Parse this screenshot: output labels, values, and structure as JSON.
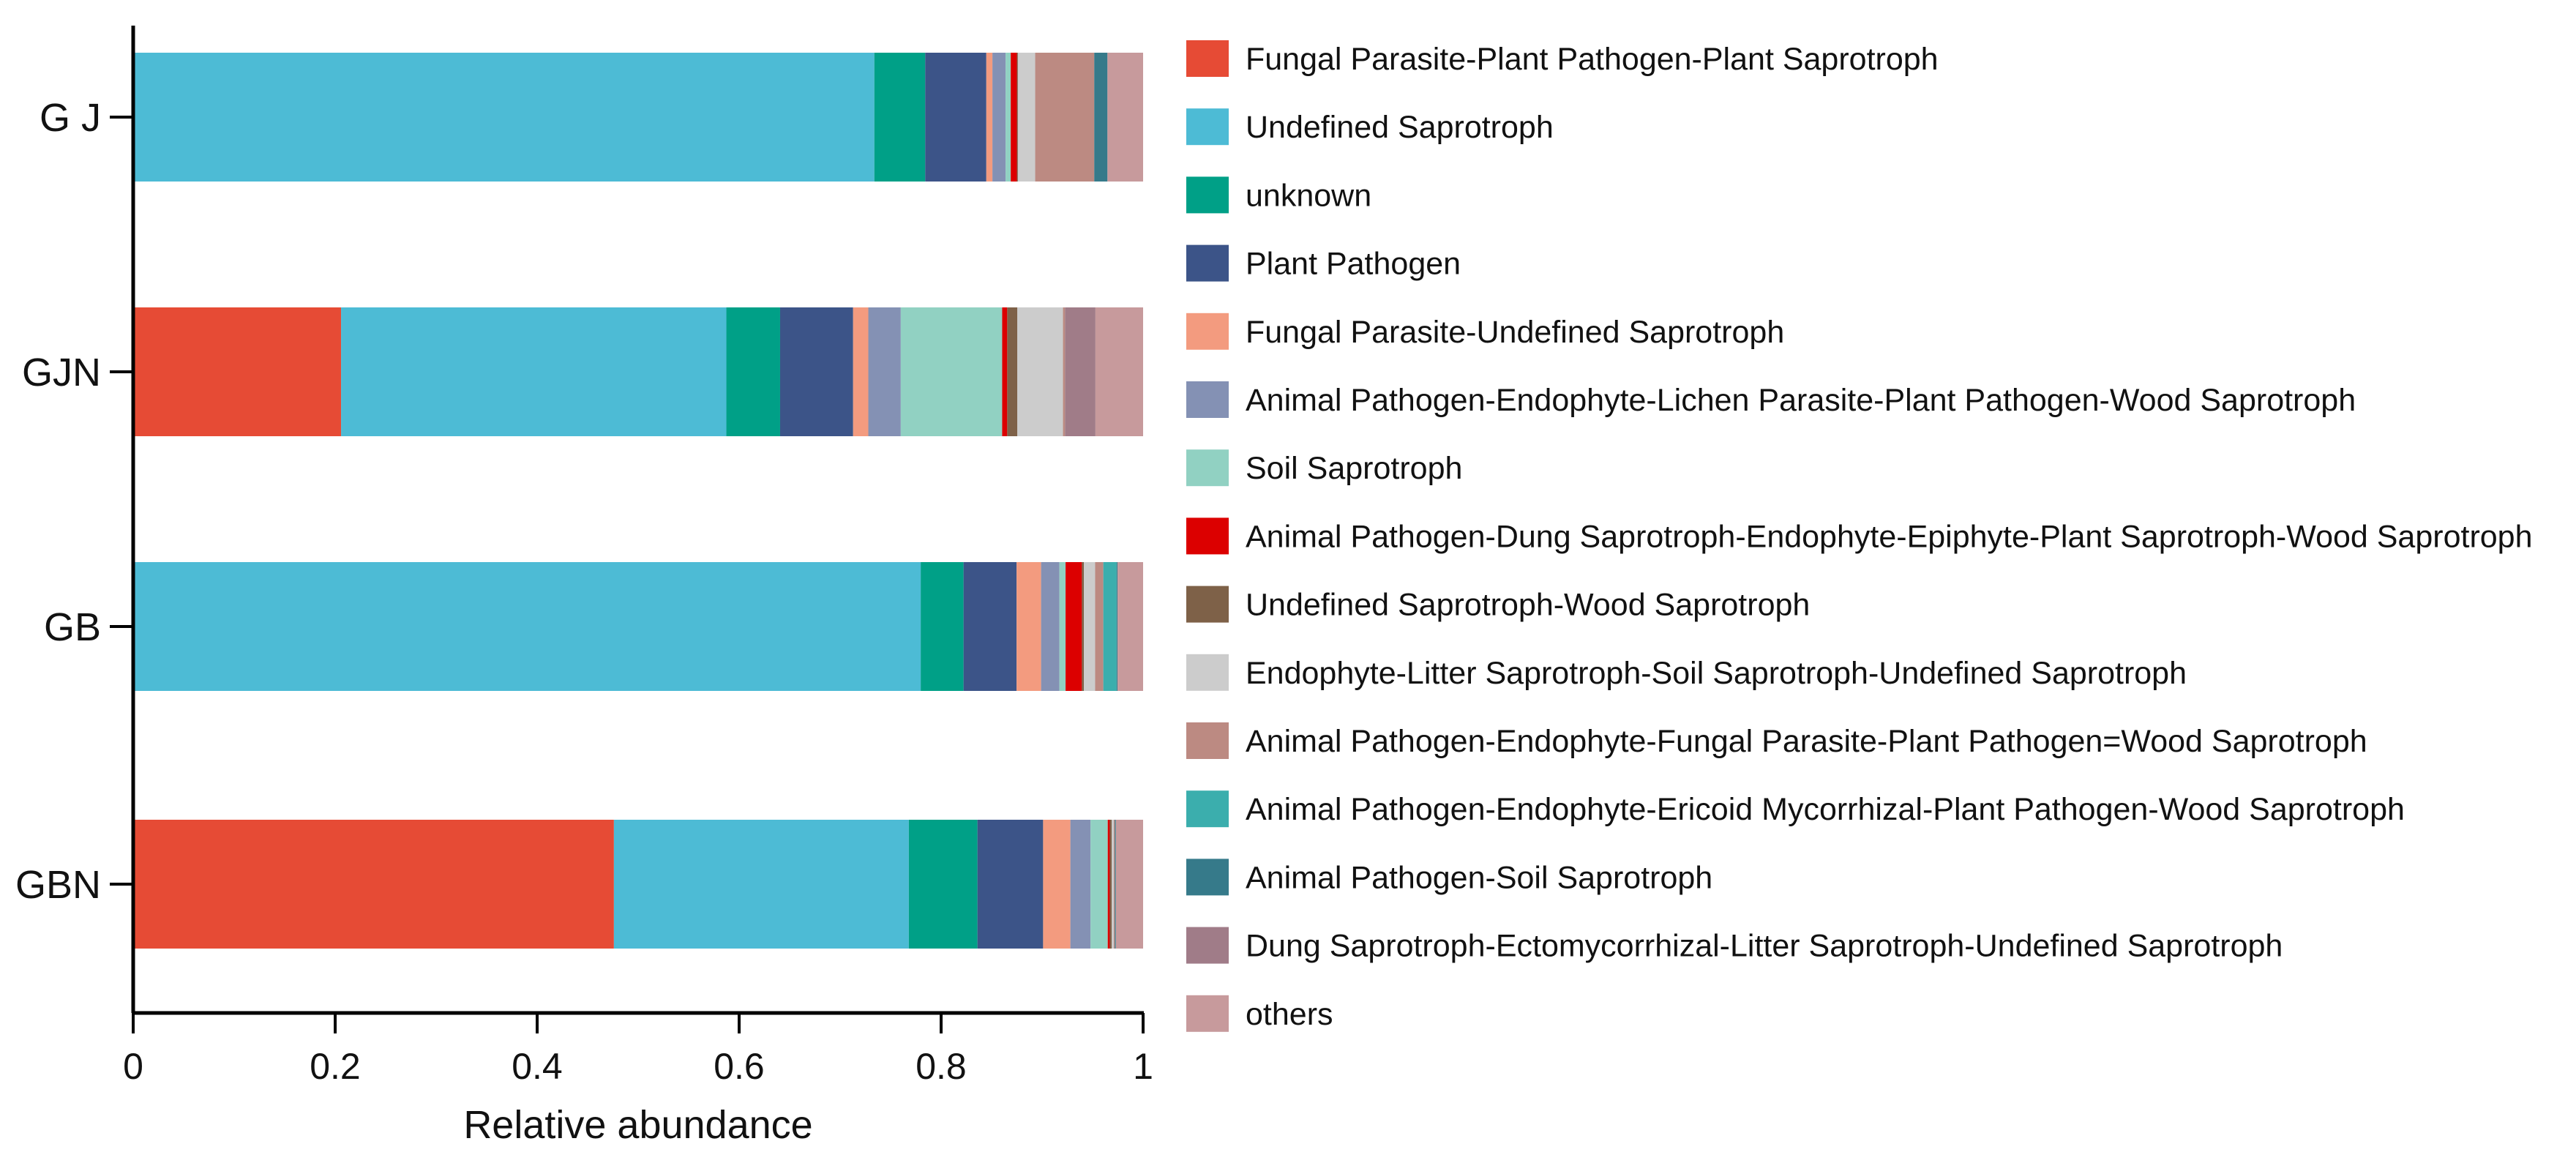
{
  "chart_data": {
    "type": "bar",
    "orientation": "horizontal",
    "stacked": true,
    "title": "",
    "xlabel": "Relative abundance",
    "ylabel": "",
    "xlim": [
      0,
      1
    ],
    "x_ticks": [
      "0",
      "0.2",
      "0.4",
      "0.6",
      "0.8",
      "1"
    ],
    "categories": [
      "G J",
      "GJN",
      "GB",
      "GBN"
    ],
    "legend_position": "right",
    "series": [
      {
        "name": "Fungal Parasite-Plant Pathogen-Plant Saprotroph",
        "color": "#E64B35",
        "values": [
          0.0,
          0.205,
          0.0,
          0.476
        ]
      },
      {
        "name": "Undefined Saprotroph",
        "color": "#4DBBD5",
        "values": [
          0.728,
          0.38,
          0.772,
          0.292
        ]
      },
      {
        "name": "unknown",
        "color": "#00A087",
        "values": [
          0.05,
          0.053,
          0.042,
          0.068
        ]
      },
      {
        "name": "Plant Pathogen",
        "color": "#3C5488",
        "values": [
          0.06,
          0.072,
          0.052,
          0.065
        ]
      },
      {
        "name": "Fungal Parasite-Undefined Saprotroph",
        "color": "#F39B7F",
        "values": [
          0.006,
          0.015,
          0.024,
          0.027
        ]
      },
      {
        "name": "Animal Pathogen-Endophyte-Lichen Parasite-Plant Pathogen-Wood Saprotroph",
        "color": "#8491B4",
        "values": [
          0.013,
          0.032,
          0.018,
          0.02
        ]
      },
      {
        "name": "Soil Saprotroph",
        "color": "#91D1C2",
        "values": [
          0.005,
          0.1,
          0.006,
          0.017
        ]
      },
      {
        "name": "Animal Pathogen-Dung Saprotroph-Endophyte-Epiphyte-Plant Saprotroph-Wood Saprotroph",
        "color": "#DC0000",
        "values": [
          0.006,
          0.005,
          0.016,
          0.002
        ]
      },
      {
        "name": "Undefined Saprotroph-Wood Saprotroph",
        "color": "#7E6148",
        "values": [
          0.001,
          0.01,
          0.002,
          0.002
        ]
      },
      {
        "name": "Endophyte-Litter Saprotroph-Soil Saprotroph-Undefined Saprotroph",
        "color": "#CCCCCC",
        "values": [
          0.017,
          0.045,
          0.011,
          0.002
        ]
      },
      {
        "name": "Animal Pathogen-Endophyte-Fungal Parasite-Plant Pathogen=Wood Saprotroph",
        "color": "#BC8A82",
        "values": [
          0.058,
          0.002,
          0.008,
          0.001
        ]
      },
      {
        "name": "Animal Pathogen-Endophyte-Ericoid Mycorrhizal-Plant Pathogen-Wood Saprotroph",
        "color": "#3BAEAD",
        "values": [
          0.0,
          0.0,
          0.013,
          0.0
        ]
      },
      {
        "name": "Animal Pathogen-Soil Saprotroph",
        "color": "#367A8A",
        "values": [
          0.013,
          0.0,
          0.001,
          0.001
        ]
      },
      {
        "name": "Dung Saprotroph-Ectomycorrhizal-Litter Saprotroph-Undefined Saprotroph",
        "color": "#A07C88",
        "values": [
          0.0,
          0.03,
          0.0,
          0.0
        ]
      },
      {
        "name": "others",
        "color": "#C79A9C",
        "values": [
          0.035,
          0.047,
          0.025,
          0.027
        ]
      }
    ]
  }
}
